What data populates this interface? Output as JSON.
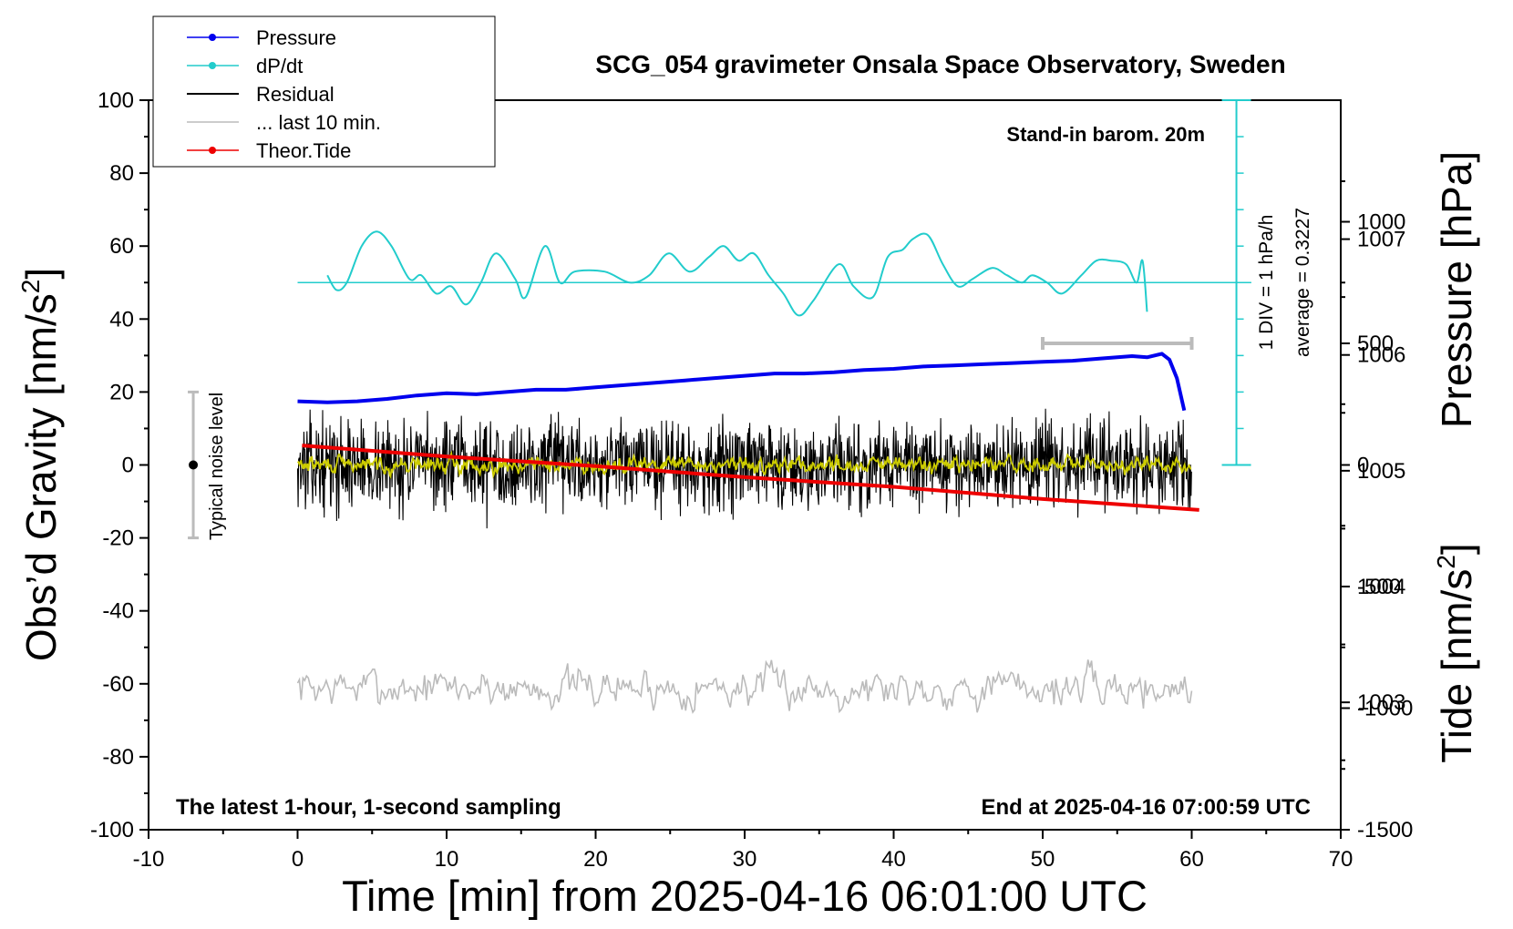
{
  "chart_data": {
    "type": "line",
    "title": "SCG_054 gravimeter Onsala Space Observatory, Sweden",
    "xlabel": "Time [min] from 2025-04-16 06:01:00 UTC",
    "ylabel_left": {
      "main": "Obs’d Gravity [nm/s",
      "sup": "2",
      "end": "]"
    },
    "ylabel_right_top": "Pressure [hPa]",
    "ylabel_right_bottom": {
      "main": "Tide [nm/s",
      "sup": "2",
      "end": "]"
    },
    "xlim": [
      -10,
      70
    ],
    "ylim": [
      -100,
      100
    ],
    "pressure_ylim": [
      1001.9,
      1008.2
    ],
    "tide_ylim": [
      -1500,
      1500
    ],
    "x_ticks": [
      "-10",
      "0",
      "10",
      "20",
      "30",
      "40",
      "50",
      "60",
      "70"
    ],
    "y_ticks": [
      "100",
      "80",
      "60",
      "40",
      "20",
      "0",
      "-20",
      "-40",
      "-60",
      "-80",
      "-100"
    ],
    "pressure_ticks": [
      "1007",
      "1006",
      "1005",
      "1004",
      "1003"
    ],
    "tide_ticks": [
      "1000",
      "500",
      "0",
      "-500",
      "-1000",
      "-1500"
    ],
    "legend": [
      {
        "label": "Pressure",
        "color": "#0000ee",
        "marker": true
      },
      {
        "label": "dP/dt",
        "color": "#22cccc",
        "marker": true
      },
      {
        "label": "Residual",
        "color": "#000000",
        "marker": false
      },
      {
        "label": "... last 10 min.",
        "color": "#bbbbbb",
        "marker": false
      },
      {
        "label": "Theor.Tide",
        "color": "#ee0000",
        "marker": true
      }
    ],
    "annotations": {
      "barometer": "Stand-in barom. 20m",
      "div_label": "1 DIV = 1 hPa/h",
      "average_label": "average = 0.3227",
      "noise_label": "Typical noise level",
      "bottom_left": "The latest 1-hour, 1-second sampling",
      "bottom_right": "End at 2025-04-16 07:00:59 UTC"
    },
    "noise_bar": {
      "x": -7,
      "low": -20,
      "high": 20
    },
    "last10_bar": {
      "x_start": 50,
      "x_end": 60,
      "tide_value": 500
    },
    "series": [
      {
        "name": "Pressure",
        "axis": "pressure",
        "color": "#0000ee",
        "x": [
          0,
          2,
          4,
          6,
          8,
          10,
          12,
          14,
          16,
          18,
          20,
          22,
          24,
          26,
          28,
          30,
          32,
          34,
          36,
          38,
          40,
          42,
          44,
          46,
          48,
          50,
          52,
          54,
          56,
          57,
          58,
          58.5,
          59,
          59.5
        ],
        "y": [
          1005.6,
          1005.59,
          1005.6,
          1005.62,
          1005.65,
          1005.67,
          1005.66,
          1005.68,
          1005.7,
          1005.7,
          1005.72,
          1005.74,
          1005.76,
          1005.78,
          1005.8,
          1005.82,
          1005.84,
          1005.84,
          1005.85,
          1005.87,
          1005.88,
          1005.9,
          1005.91,
          1005.92,
          1005.93,
          1005.94,
          1005.95,
          1005.97,
          1005.99,
          1005.98,
          1006.01,
          1005.96,
          1005.8,
          1005.52
        ]
      },
      {
        "name": "dP/dt",
        "axis": "gravity",
        "color": "#22cccc",
        "x": [
          2,
          2.6,
          3.3,
          4.3,
          5.3,
          6.3,
          7.5,
          8.3,
          9.3,
          10.3,
          11.3,
          12.3,
          13.3,
          14.6,
          15.3,
          16.6,
          17.6,
          18.6,
          20.6,
          22.3,
          23.6,
          24.9,
          26.3,
          27.6,
          28.6,
          29.6,
          30.6,
          31.6,
          32.6,
          33.6,
          34.6,
          36.3,
          37.3,
          38.6,
          39.6,
          40.6,
          41.3,
          42.3,
          43.3,
          44.3,
          45.3,
          46.6,
          47.6,
          48.6,
          49.3,
          50.3,
          51.3,
          52.6,
          53.6,
          54.6,
          55.6,
          56.3,
          56.7,
          57
        ],
        "y": [
          52,
          48,
          50,
          60,
          64,
          60,
          51,
          52,
          47,
          49,
          44,
          50,
          58,
          51,
          46,
          60,
          50,
          53,
          53,
          50,
          52,
          58,
          53,
          57,
          60,
          56,
          58,
          52,
          47,
          41,
          45,
          55,
          49,
          46,
          57,
          59,
          62,
          63,
          55,
          49,
          51,
          54,
          52,
          50,
          52,
          50,
          47,
          52,
          56,
          56,
          55,
          50,
          56,
          42
        ]
      },
      {
        "name": "Residual",
        "axis": "gravity",
        "color": "#000000",
        "x_range": [
          0,
          60
        ],
        "mean": 0,
        "spread": 6
      },
      {
        "name": "Residual (smoothed)",
        "axis": "gravity",
        "color": "#cccc00",
        "x_range": [
          0,
          60
        ],
        "mean": 0,
        "spread": 2
      },
      {
        "name": "... last 10 min.",
        "axis": "gravity",
        "color": "#bbbbbb",
        "x_range": [
          0,
          60
        ],
        "mean": -61,
        "spread": 5
      },
      {
        "name": "Theor.Tide",
        "axis": "tide",
        "color": "#ee0000",
        "x": [
          0.3,
          10,
          20,
          30,
          40,
          50,
          60.5
        ],
        "y": [
          80,
          35,
          -5,
          -50,
          -90,
          -140,
          -185
        ]
      }
    ]
  }
}
